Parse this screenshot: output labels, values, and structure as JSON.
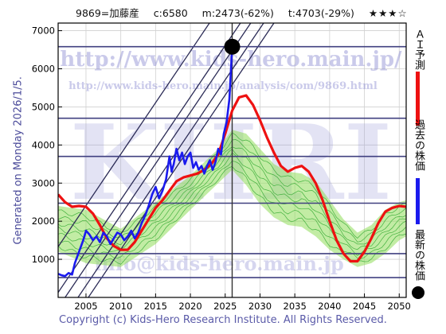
{
  "header": {
    "code_name": "9869=加藤産",
    "close": "c:6580",
    "max": "m:2473(-62%)",
    "target": "t:4703(-29%)",
    "stars": "★★★☆"
  },
  "footer": "Copyright (c) Kids-Hero Research Institute. All Rights Reserved.",
  "generated": "Generated on Monday 2026/1/5.",
  "watermarks": {
    "url": "http://www.kids-hero.main.jp/",
    "analysis_url": "http://www.kids-hero.main.jp/analysis/com/9869.html",
    "big": "KHRI",
    "email": "info@kids-hero.main.jp"
  },
  "legend": {
    "ai_forecast": "ＡＩ予測",
    "past_price": "過去の株価",
    "latest_price": "最新の株価"
  },
  "colors": {
    "ai_forecast": "#ee1111",
    "past_price": "#1a1aee",
    "latest_price": "#000000",
    "band_fill": "#8fdc5a",
    "band_lines": "#2ea82e",
    "channel_lines": "#2a2a55",
    "h_lines": "#404080",
    "grid": "#d0d0d0"
  },
  "chart_data": {
    "type": "line",
    "title": "",
    "xlabel": "",
    "ylabel": "",
    "xlim": [
      2001,
      2051
    ],
    "ylim": [
      0,
      7200
    ],
    "x_ticks": [
      2005,
      2010,
      2015,
      2020,
      2025,
      2030,
      2035,
      2040,
      2045,
      2050
    ],
    "y_ticks": [
      1000,
      2000,
      3000,
      4000,
      5000,
      6000,
      7000
    ],
    "grid": true,
    "legend_position": "right",
    "latest": {
      "year": 2026.0,
      "value": 6580
    },
    "horizontal_lines": [
      6580,
      4703,
      3700,
      2473,
      1150,
      520
    ],
    "vertical_line_year": 2026.0,
    "series": [
      {
        "name": "過去の株価",
        "x": [
          2001,
          2001.5,
          2002,
          2002.5,
          2003,
          2003.4,
          2003.8,
          2004.2,
          2004.6,
          2005,
          2005.5,
          2006,
          2006.5,
          2007,
          2007.5,
          2008,
          2008.5,
          2009,
          2009.5,
          2010,
          2010.5,
          2011,
          2011.5,
          2012,
          2012.5,
          2013,
          2013.5,
          2014,
          2014.5,
          2015,
          2015.5,
          2016,
          2016.5,
          2017,
          2017.3,
          2017.6,
          2018,
          2018.4,
          2018.8,
          2019.2,
          2019.6,
          2020,
          2020.4,
          2020.8,
          2021.2,
          2021.6,
          2022,
          2022.4,
          2022.8,
          2023.2,
          2023.6,
          2024,
          2024.4,
          2024.8,
          2025.2,
          2025.6,
          2026.0
        ],
        "values": [
          620,
          580,
          560,
          640,
          600,
          900,
          1100,
          1300,
          1500,
          1750,
          1650,
          1500,
          1600,
          1450,
          1700,
          1600,
          1400,
          1550,
          1700,
          1650,
          1500,
          1600,
          1750,
          1550,
          1700,
          1950,
          2150,
          2400,
          2700,
          2900,
          2600,
          2800,
          3100,
          3700,
          3300,
          3500,
          3900,
          3600,
          3800,
          3500,
          3700,
          3800,
          3400,
          3550,
          3350,
          3450,
          3250,
          3450,
          3600,
          3350,
          3550,
          3900,
          3750,
          4300,
          4600,
          5200,
          6580
        ]
      },
      {
        "name": "ＡＩ予測",
        "x": [
          2001,
          2002,
          2003,
          2004,
          2005,
          2006,
          2007,
          2008,
          2009,
          2010,
          2011,
          2012,
          2013,
          2014,
          2015,
          2016,
          2017,
          2018,
          2019,
          2020,
          2021,
          2022,
          2023,
          2024,
          2025,
          2026,
          2027,
          2028,
          2029,
          2030,
          2031,
          2032,
          2033,
          2034,
          2035,
          2036,
          2037,
          2038,
          2039,
          2040,
          2041,
          2042,
          2043,
          2044,
          2045,
          2046,
          2047,
          2048,
          2049,
          2050,
          2051
        ],
        "values": [
          2700,
          2500,
          2380,
          2400,
          2380,
          2200,
          1900,
          1550,
          1350,
          1250,
          1250,
          1450,
          1750,
          2050,
          2350,
          2550,
          2800,
          3050,
          3150,
          3200,
          3250,
          3350,
          3500,
          3750,
          4300,
          4900,
          5250,
          5300,
          5050,
          4650,
          4200,
          3800,
          3450,
          3300,
          3400,
          3450,
          3300,
          3000,
          2550,
          2000,
          1500,
          1150,
          950,
          950,
          1200,
          1550,
          1950,
          2250,
          2350,
          2400,
          2380
        ]
      }
    ],
    "band": {
      "x": [
        2001,
        2005,
        2010,
        2015,
        2020,
        2024,
        2026,
        2028,
        2030,
        2032,
        2034,
        2036,
        2038,
        2040,
        2042,
        2044,
        2046,
        2048,
        2050,
        2051
      ],
      "upper": [
        2400,
        2300,
        1800,
        2500,
        3200,
        3900,
        4400,
        4300,
        3900,
        3500,
        3300,
        3250,
        3050,
        2550,
        2050,
        1700,
        1900,
        2300,
        2500,
        2550
      ],
      "lower": [
        1200,
        900,
        800,
        1400,
        2300,
        3000,
        3350,
        2950,
        2450,
        2100,
        1900,
        1850,
        1600,
        1250,
        1000,
        800,
        900,
        1150,
        1500,
        1600
      ]
    }
  }
}
